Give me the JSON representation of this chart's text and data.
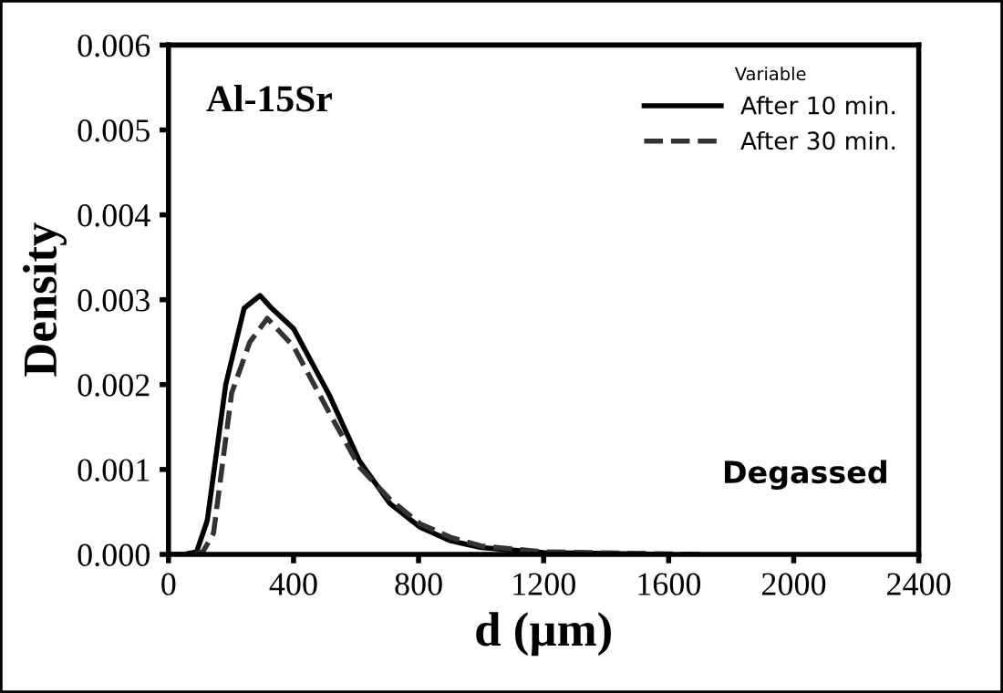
{
  "chart_data": {
    "type": "line",
    "xlabel": "d (µm)",
    "ylabel": "Density",
    "xlim": [
      0,
      2400
    ],
    "xticks": [
      0,
      400,
      800,
      1200,
      1600,
      2000,
      2400
    ],
    "ylim": [
      0,
      0.006
    ],
    "yticks": [
      {
        "value": 0,
        "label": "0.000"
      },
      {
        "value": 0.001,
        "label": "0.001"
      },
      {
        "value": 0.002,
        "label": "0.002"
      },
      {
        "value": 0.003,
        "label": "0.003"
      },
      {
        "value": 0.004,
        "label": "0.004"
      },
      {
        "value": 0.005,
        "label": "0.005"
      },
      {
        "value": 0.006,
        "label": "0.006"
      }
    ],
    "legend": "top right",
    "legend_title": "Variable",
    "grid": false,
    "annotations": [
      {
        "text": "Al-15Sr"
      },
      {
        "text": "Degassed"
      }
    ],
    "series": [
      {
        "name": "After 10 min.",
        "color": "#000000",
        "line_style": "solid",
        "x": [
          0,
          50,
          90,
          124,
          183,
          242,
          293,
          330,
          400,
          514,
          611,
          708,
          805,
          903,
          1000,
          1200,
          1600
        ],
        "values": [
          0,
          0,
          3e-05,
          0.0004,
          0.002,
          0.0029,
          0.00305,
          0.0029,
          0.00266,
          0.00188,
          0.0011,
          0.0006,
          0.00032,
          0.00016,
          8e-05,
          2e-05,
          0
        ]
      },
      {
        "name": "After 30 min.",
        "color": "#333333",
        "line_style": "dashed",
        "x": [
          0,
          80,
          110,
          144,
          202,
          260,
          316,
          400,
          514,
          611,
          708,
          805,
          903,
          1000,
          1200,
          1700
        ],
        "values": [
          0,
          0,
          3e-05,
          0.00025,
          0.0019,
          0.0025,
          0.00278,
          0.00245,
          0.00167,
          0.00103,
          0.00065,
          0.00036,
          0.0002,
          0.0001,
          3e-05,
          0
        ]
      }
    ]
  }
}
